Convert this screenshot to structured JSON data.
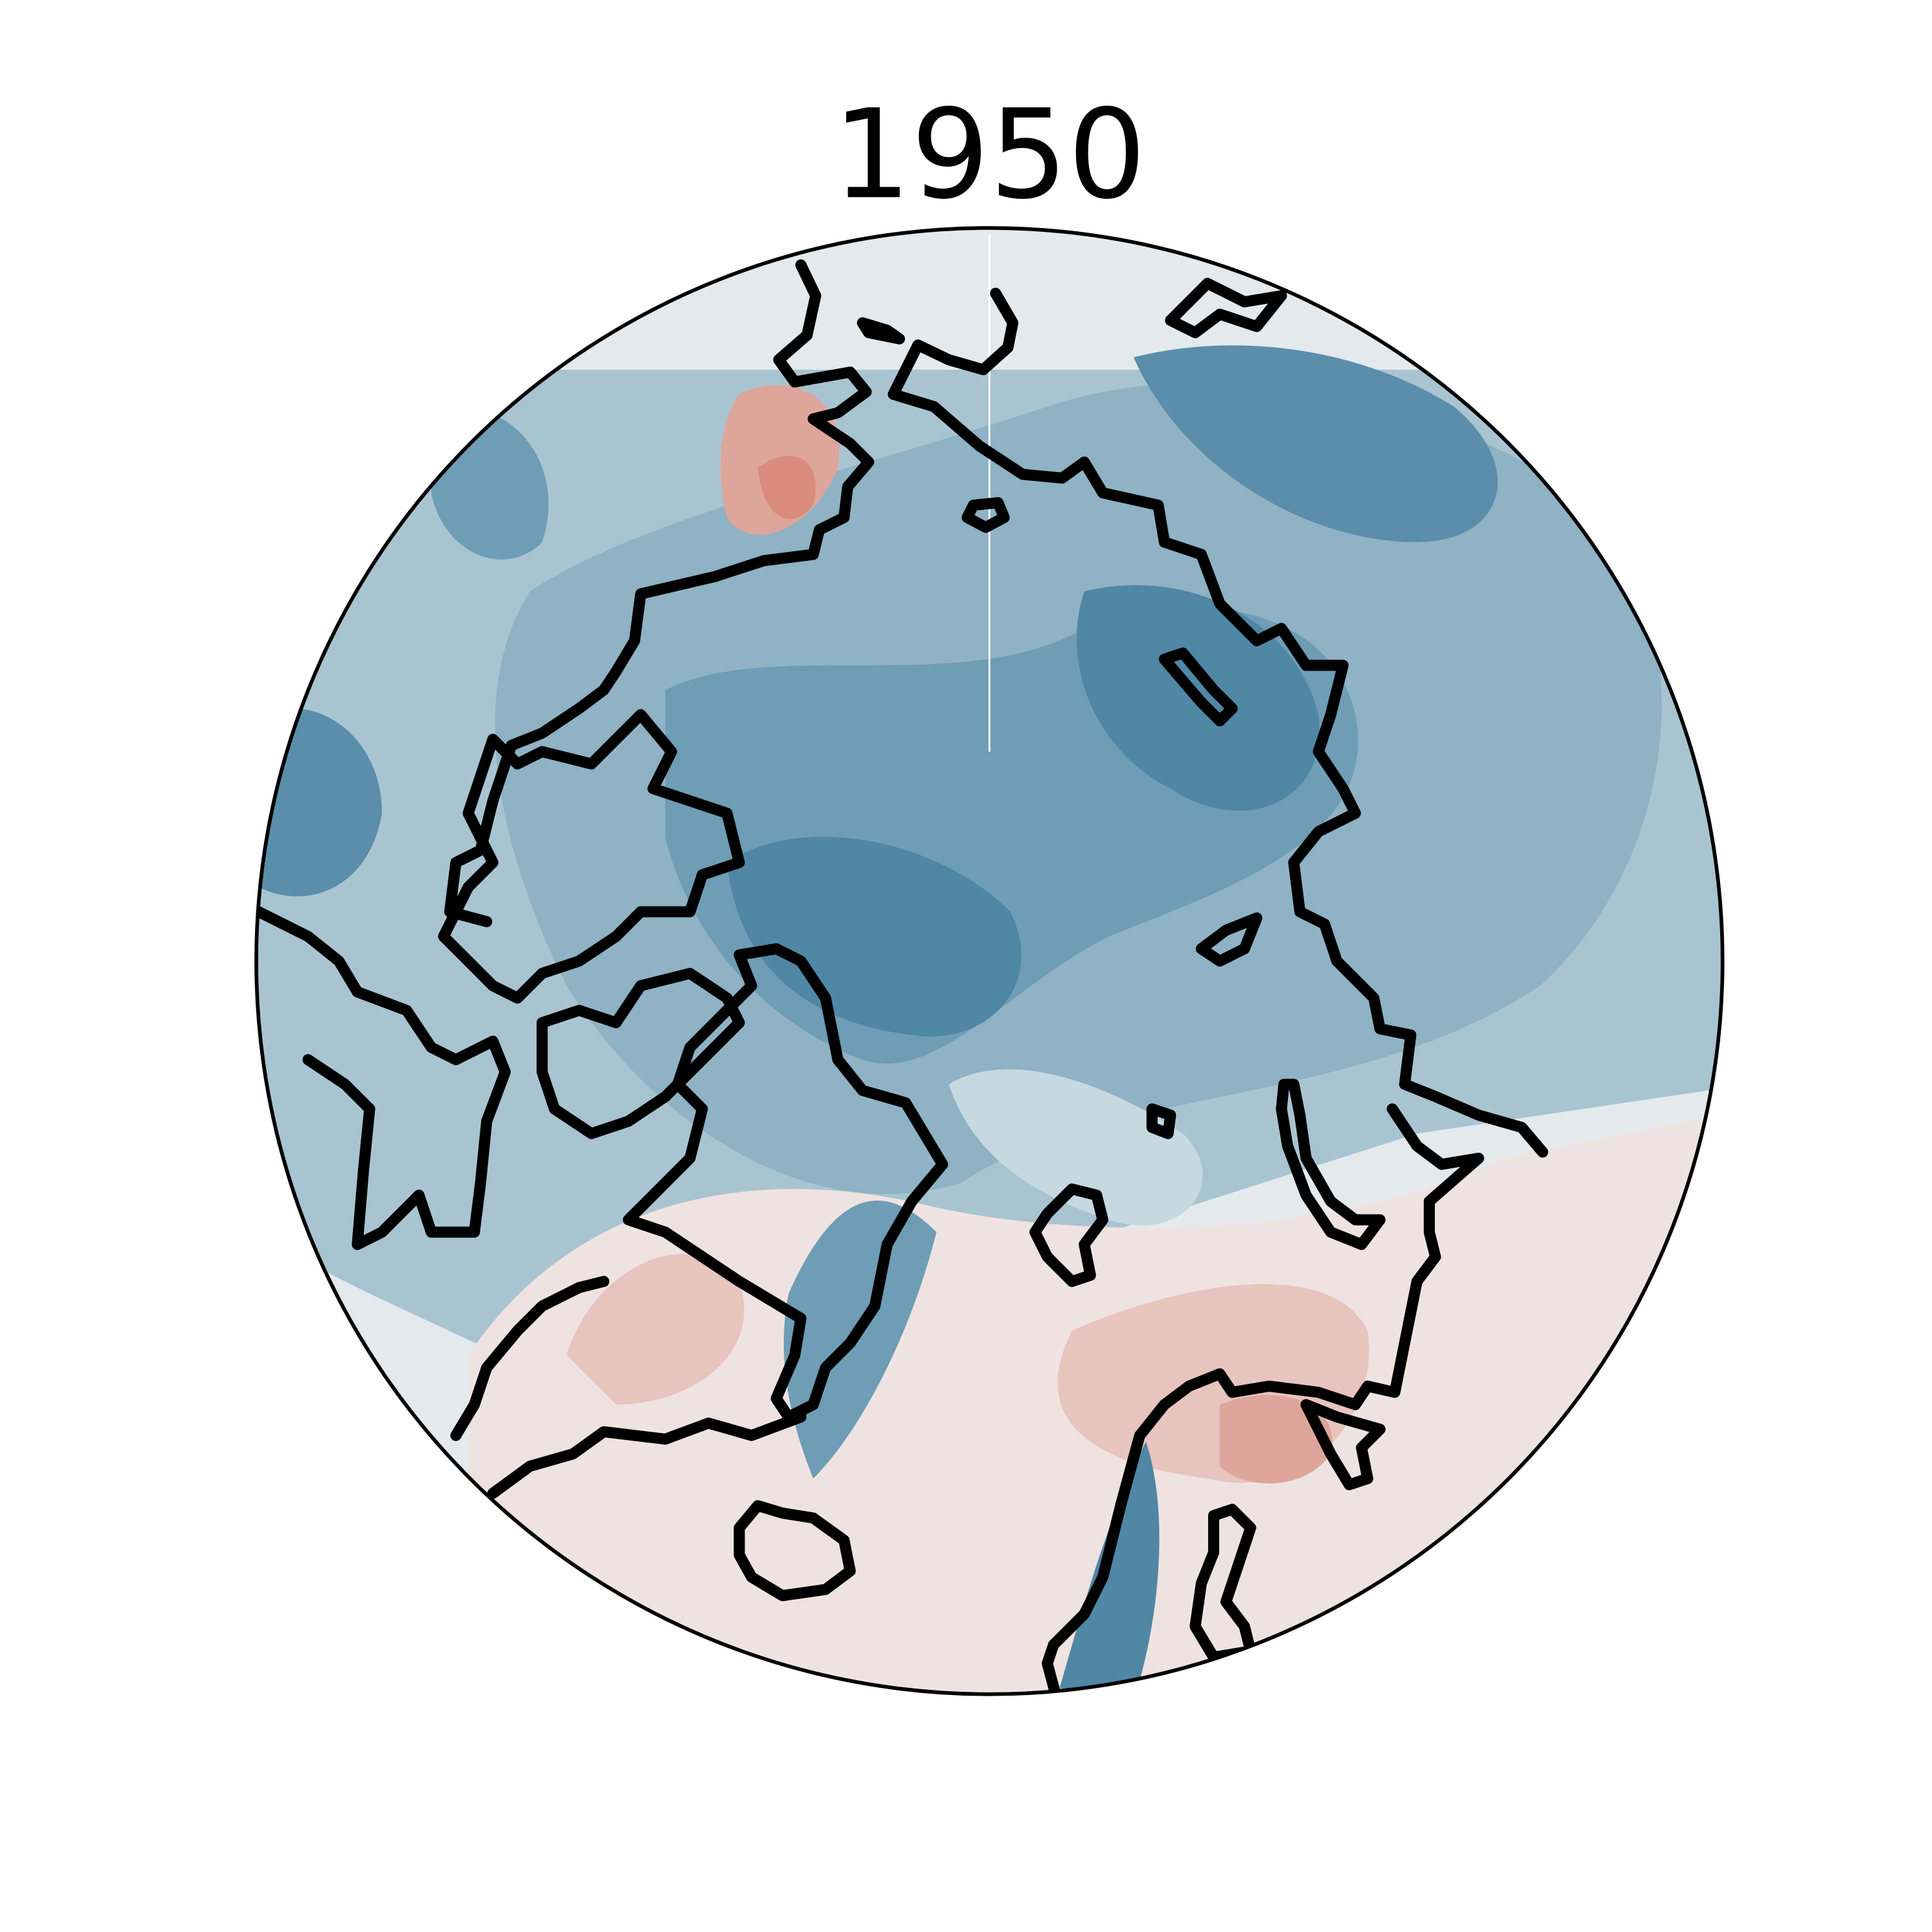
{
  "title": "1950"
}
